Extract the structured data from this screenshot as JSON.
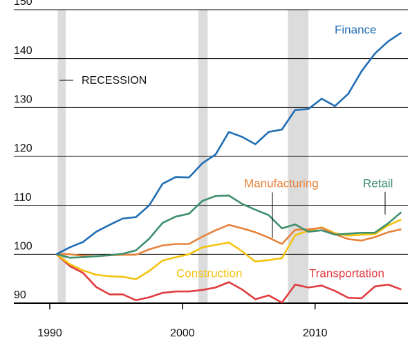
{
  "chart_data": {
    "type": "line",
    "x": [
      1990.5,
      1991.5,
      1992.5,
      1993.5,
      1994.5,
      1995.5,
      1996.5,
      1997.5,
      1998.5,
      1999.5,
      2000.5,
      2001.5,
      2002.5,
      2003.5,
      2004.5,
      2005.5,
      2006.5,
      2007.5,
      2008.5,
      2009.5,
      2010.5,
      2011.5,
      2012.5,
      2013.5,
      2014.5,
      2015.5,
      2016.5
    ],
    "series": [
      {
        "name": "Finance",
        "color": "#1f6db3",
        "values": [
          100,
          101.4,
          102.5,
          104.6,
          106,
          107.3,
          107.6,
          110,
          114.4,
          115.8,
          115.7,
          118.6,
          120.4,
          125,
          124,
          122.5,
          125,
          125.5,
          129.5,
          129.7,
          131.8,
          130.3,
          132.8,
          137.4,
          141,
          143.5,
          145.3
        ]
      },
      {
        "name": "Retail",
        "color": "#3d8f6c",
        "values": [
          100,
          99.3,
          99.4,
          99.6,
          99.8,
          100.1,
          100.8,
          103.2,
          106.4,
          107.7,
          108.3,
          110.9,
          111.9,
          112,
          110.3,
          109.1,
          108,
          105.3,
          106.1,
          104.6,
          104.9,
          104,
          104.2,
          104.4,
          104.4,
          106.3,
          108.6
        ]
      },
      {
        "name": "Manufacturing",
        "color": "#e8823a",
        "values": [
          100,
          100,
          99.7,
          99.6,
          99.8,
          99.9,
          99.9,
          101,
          101.8,
          102.1,
          102.1,
          103.6,
          104.9,
          106,
          105.3,
          104.5,
          103.4,
          102.1,
          105,
          105.1,
          105.4,
          104.1,
          103.1,
          102.8,
          103.5,
          104.5,
          105.1
        ]
      },
      {
        "name": "Construction",
        "color": "#f4c20d",
        "values": [
          100,
          98,
          96.7,
          95.8,
          95.5,
          95.4,
          94.9,
          96.6,
          98.7,
          99.4,
          100,
          101.4,
          101.9,
          102.4,
          100.6,
          98.5,
          98.8,
          99.2,
          103.9,
          104.8,
          105.5,
          104.3,
          103.8,
          104,
          104.1,
          105.9,
          107.1
        ]
      },
      {
        "name": "Transportation",
        "color": "#e03c3f",
        "values": [
          100,
          97.6,
          96.2,
          93.3,
          91.8,
          91.8,
          90.6,
          91.2,
          92.1,
          92.4,
          92.4,
          92.7,
          93.2,
          94.3,
          92.8,
          90.8,
          91.6,
          90.1,
          93.8,
          93.2,
          93.6,
          92.5,
          91.1,
          91,
          93.4,
          93.8,
          92.8
        ]
      }
    ],
    "recessions": [
      [
        1990.6,
        1991.2
      ],
      [
        2001.2,
        2001.9
      ],
      [
        2007.95,
        2009.5
      ]
    ],
    "recession_label": "RECESSION",
    "xlim": [
      1990,
      2017
    ],
    "xticks": [
      1990,
      2000,
      2010
    ],
    "ylim": [
      90,
      150
    ],
    "yticks": [
      90,
      100,
      110,
      120,
      130,
      140,
      150
    ],
    "grid": true
  }
}
